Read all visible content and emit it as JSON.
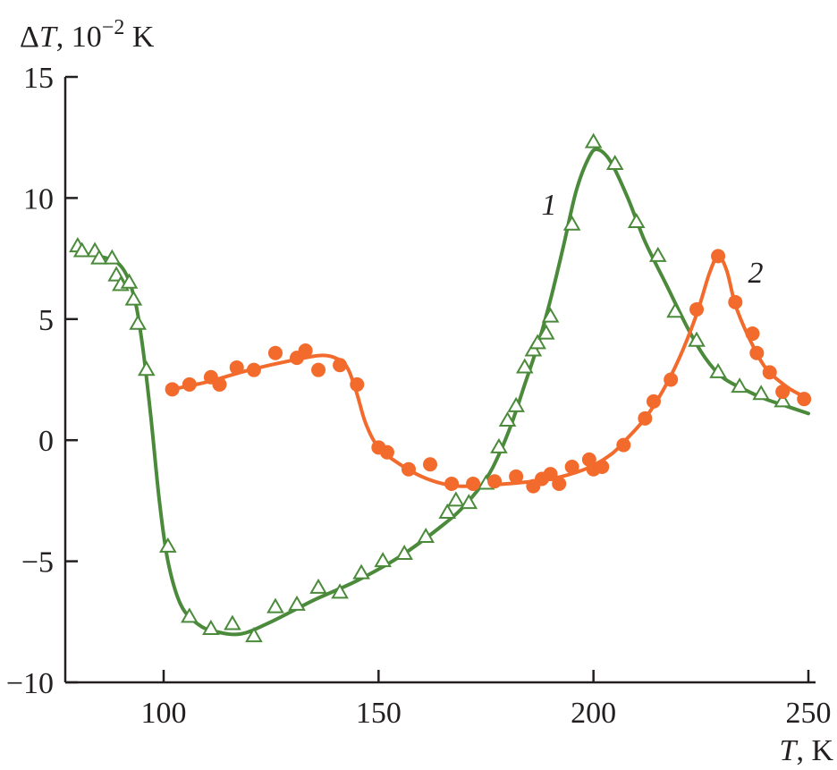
{
  "chart_data": {
    "type": "scatter",
    "ylabel_prefix": "Δ",
    "ylabel_var": "T",
    "ylabel_suffix": ", 10",
    "ylabel_exp": "−2",
    "ylabel_unit": " K",
    "xlabel_var": "T",
    "xlabel_unit": ", K",
    "xlim": [
      75,
      252
    ],
    "ylim": [
      -10,
      15
    ],
    "x_ticks": [
      100,
      150,
      200,
      250
    ],
    "y_ticks": [
      15,
      10,
      5,
      0,
      -5,
      -10
    ],
    "x_tick_labels": [
      "100",
      "150",
      "200",
      "250"
    ],
    "y_tick_labels": [
      "15",
      "10",
      "5",
      "0",
      "−5",
      "−10"
    ],
    "colors": {
      "series1": "#4a8a3a",
      "series2": "#f26b2c",
      "axis": "#231f20"
    },
    "series": [
      {
        "name": "1",
        "marker": "open-triangle",
        "points": [
          [
            80,
            8.0
          ],
          [
            81,
            7.8
          ],
          [
            84,
            7.8
          ],
          [
            85,
            7.5
          ],
          [
            88,
            7.5
          ],
          [
            89,
            6.8
          ],
          [
            90,
            6.4
          ],
          [
            92,
            6.5
          ],
          [
            93,
            5.8
          ],
          [
            94,
            4.8
          ],
          [
            96,
            2.9
          ],
          [
            101,
            -4.4
          ],
          [
            106,
            -7.3
          ],
          [
            111,
            -7.8
          ],
          [
            116,
            -7.6
          ],
          [
            121,
            -8.1
          ],
          [
            126,
            -6.9
          ],
          [
            131,
            -6.8
          ],
          [
            136,
            -6.1
          ],
          [
            141,
            -6.3
          ],
          [
            146,
            -5.5
          ],
          [
            151,
            -5.0
          ],
          [
            156,
            -4.7
          ],
          [
            161,
            -4.0
          ],
          [
            166,
            -3.0
          ],
          [
            168,
            -2.5
          ],
          [
            171,
            -2.6
          ],
          [
            175,
            -1.8
          ],
          [
            178,
            -0.3
          ],
          [
            180,
            0.8
          ],
          [
            182,
            1.4
          ],
          [
            184,
            3.0
          ],
          [
            186,
            3.7
          ],
          [
            187,
            4.0
          ],
          [
            189,
            4.4
          ],
          [
            190,
            5.1
          ],
          [
            195,
            8.9
          ],
          [
            200,
            12.3
          ],
          [
            205,
            11.4
          ],
          [
            210,
            9.0
          ],
          [
            215,
            7.6
          ],
          [
            219,
            5.3
          ],
          [
            224,
            4.1
          ],
          [
            229,
            2.8
          ],
          [
            234,
            2.2
          ],
          [
            239,
            1.9
          ],
          [
            244,
            1.6
          ]
        ],
        "curve": [
          [
            80,
            7.7
          ],
          [
            85,
            7.6
          ],
          [
            90,
            7.2
          ],
          [
            93,
            6.0
          ],
          [
            95,
            4.0
          ],
          [
            97,
            1.0
          ],
          [
            99,
            -2.5
          ],
          [
            101,
            -5.0
          ],
          [
            104,
            -6.8
          ],
          [
            108,
            -7.6
          ],
          [
            112,
            -7.9
          ],
          [
            118,
            -8.0
          ],
          [
            125,
            -7.5
          ],
          [
            135,
            -6.6
          ],
          [
            145,
            -5.8
          ],
          [
            155,
            -4.8
          ],
          [
            165,
            -3.5
          ],
          [
            170,
            -2.7
          ],
          [
            175,
            -1.6
          ],
          [
            178,
            -0.6
          ],
          [
            181,
            0.7
          ],
          [
            184,
            2.3
          ],
          [
            187,
            3.9
          ],
          [
            190,
            5.8
          ],
          [
            193,
            8.0
          ],
          [
            196,
            10.3
          ],
          [
            199,
            11.7
          ],
          [
            201,
            12.0
          ],
          [
            204,
            11.5
          ],
          [
            208,
            10.0
          ],
          [
            212,
            8.2
          ],
          [
            217,
            6.4
          ],
          [
            222,
            4.6
          ],
          [
            226,
            3.4
          ],
          [
            230,
            2.6
          ],
          [
            235,
            2.1
          ],
          [
            240,
            1.7
          ],
          [
            245,
            1.4
          ],
          [
            250,
            1.1
          ]
        ]
      },
      {
        "name": "2",
        "marker": "filled-circle",
        "points": [
          [
            102,
            2.1
          ],
          [
            106,
            2.3
          ],
          [
            111,
            2.6
          ],
          [
            113,
            2.3
          ],
          [
            117,
            3.0
          ],
          [
            121,
            2.9
          ],
          [
            126,
            3.6
          ],
          [
            131,
            3.4
          ],
          [
            133,
            3.7
          ],
          [
            136,
            2.9
          ],
          [
            141,
            3.1
          ],
          [
            145,
            2.3
          ],
          [
            150,
            -0.3
          ],
          [
            152,
            -0.5
          ],
          [
            157,
            -1.2
          ],
          [
            162,
            -1.0
          ],
          [
            167,
            -1.8
          ],
          [
            172,
            -1.8
          ],
          [
            177,
            -1.7
          ],
          [
            182,
            -1.5
          ],
          [
            186,
            -1.9
          ],
          [
            188,
            -1.6
          ],
          [
            190,
            -1.4
          ],
          [
            192,
            -1.8
          ],
          [
            195,
            -1.1
          ],
          [
            199,
            -0.8
          ],
          [
            200,
            -1.2
          ],
          [
            202,
            -1.1
          ],
          [
            207,
            -0.2
          ],
          [
            212,
            0.9
          ],
          [
            214,
            1.6
          ],
          [
            218,
            2.5
          ],
          [
            224,
            5.4
          ],
          [
            229,
            7.6
          ],
          [
            233,
            5.7
          ],
          [
            237,
            4.4
          ],
          [
            238,
            3.6
          ],
          [
            241,
            2.8
          ],
          [
            244,
            2.0
          ],
          [
            249,
            1.7
          ]
        ],
        "curve": [
          [
            102,
            2.1
          ],
          [
            110,
            2.4
          ],
          [
            120,
            2.9
          ],
          [
            130,
            3.3
          ],
          [
            137,
            3.5
          ],
          [
            141,
            3.3
          ],
          [
            143,
            2.9
          ],
          [
            145,
            1.9
          ],
          [
            147,
            0.7
          ],
          [
            150,
            -0.3
          ],
          [
            155,
            -1.0
          ],
          [
            160,
            -1.5
          ],
          [
            165,
            -1.8
          ],
          [
            170,
            -1.9
          ],
          [
            180,
            -1.8
          ],
          [
            190,
            -1.6
          ],
          [
            198,
            -1.2
          ],
          [
            204,
            -0.6
          ],
          [
            208,
            0.1
          ],
          [
            212,
            0.9
          ],
          [
            216,
            2.0
          ],
          [
            220,
            3.4
          ],
          [
            224,
            5.2
          ],
          [
            227,
            6.9
          ],
          [
            229,
            7.6
          ],
          [
            231,
            7.0
          ],
          [
            233,
            5.6
          ],
          [
            236,
            4.3
          ],
          [
            240,
            3.0
          ],
          [
            245,
            2.2
          ],
          [
            249,
            1.8
          ]
        ]
      }
    ]
  }
}
